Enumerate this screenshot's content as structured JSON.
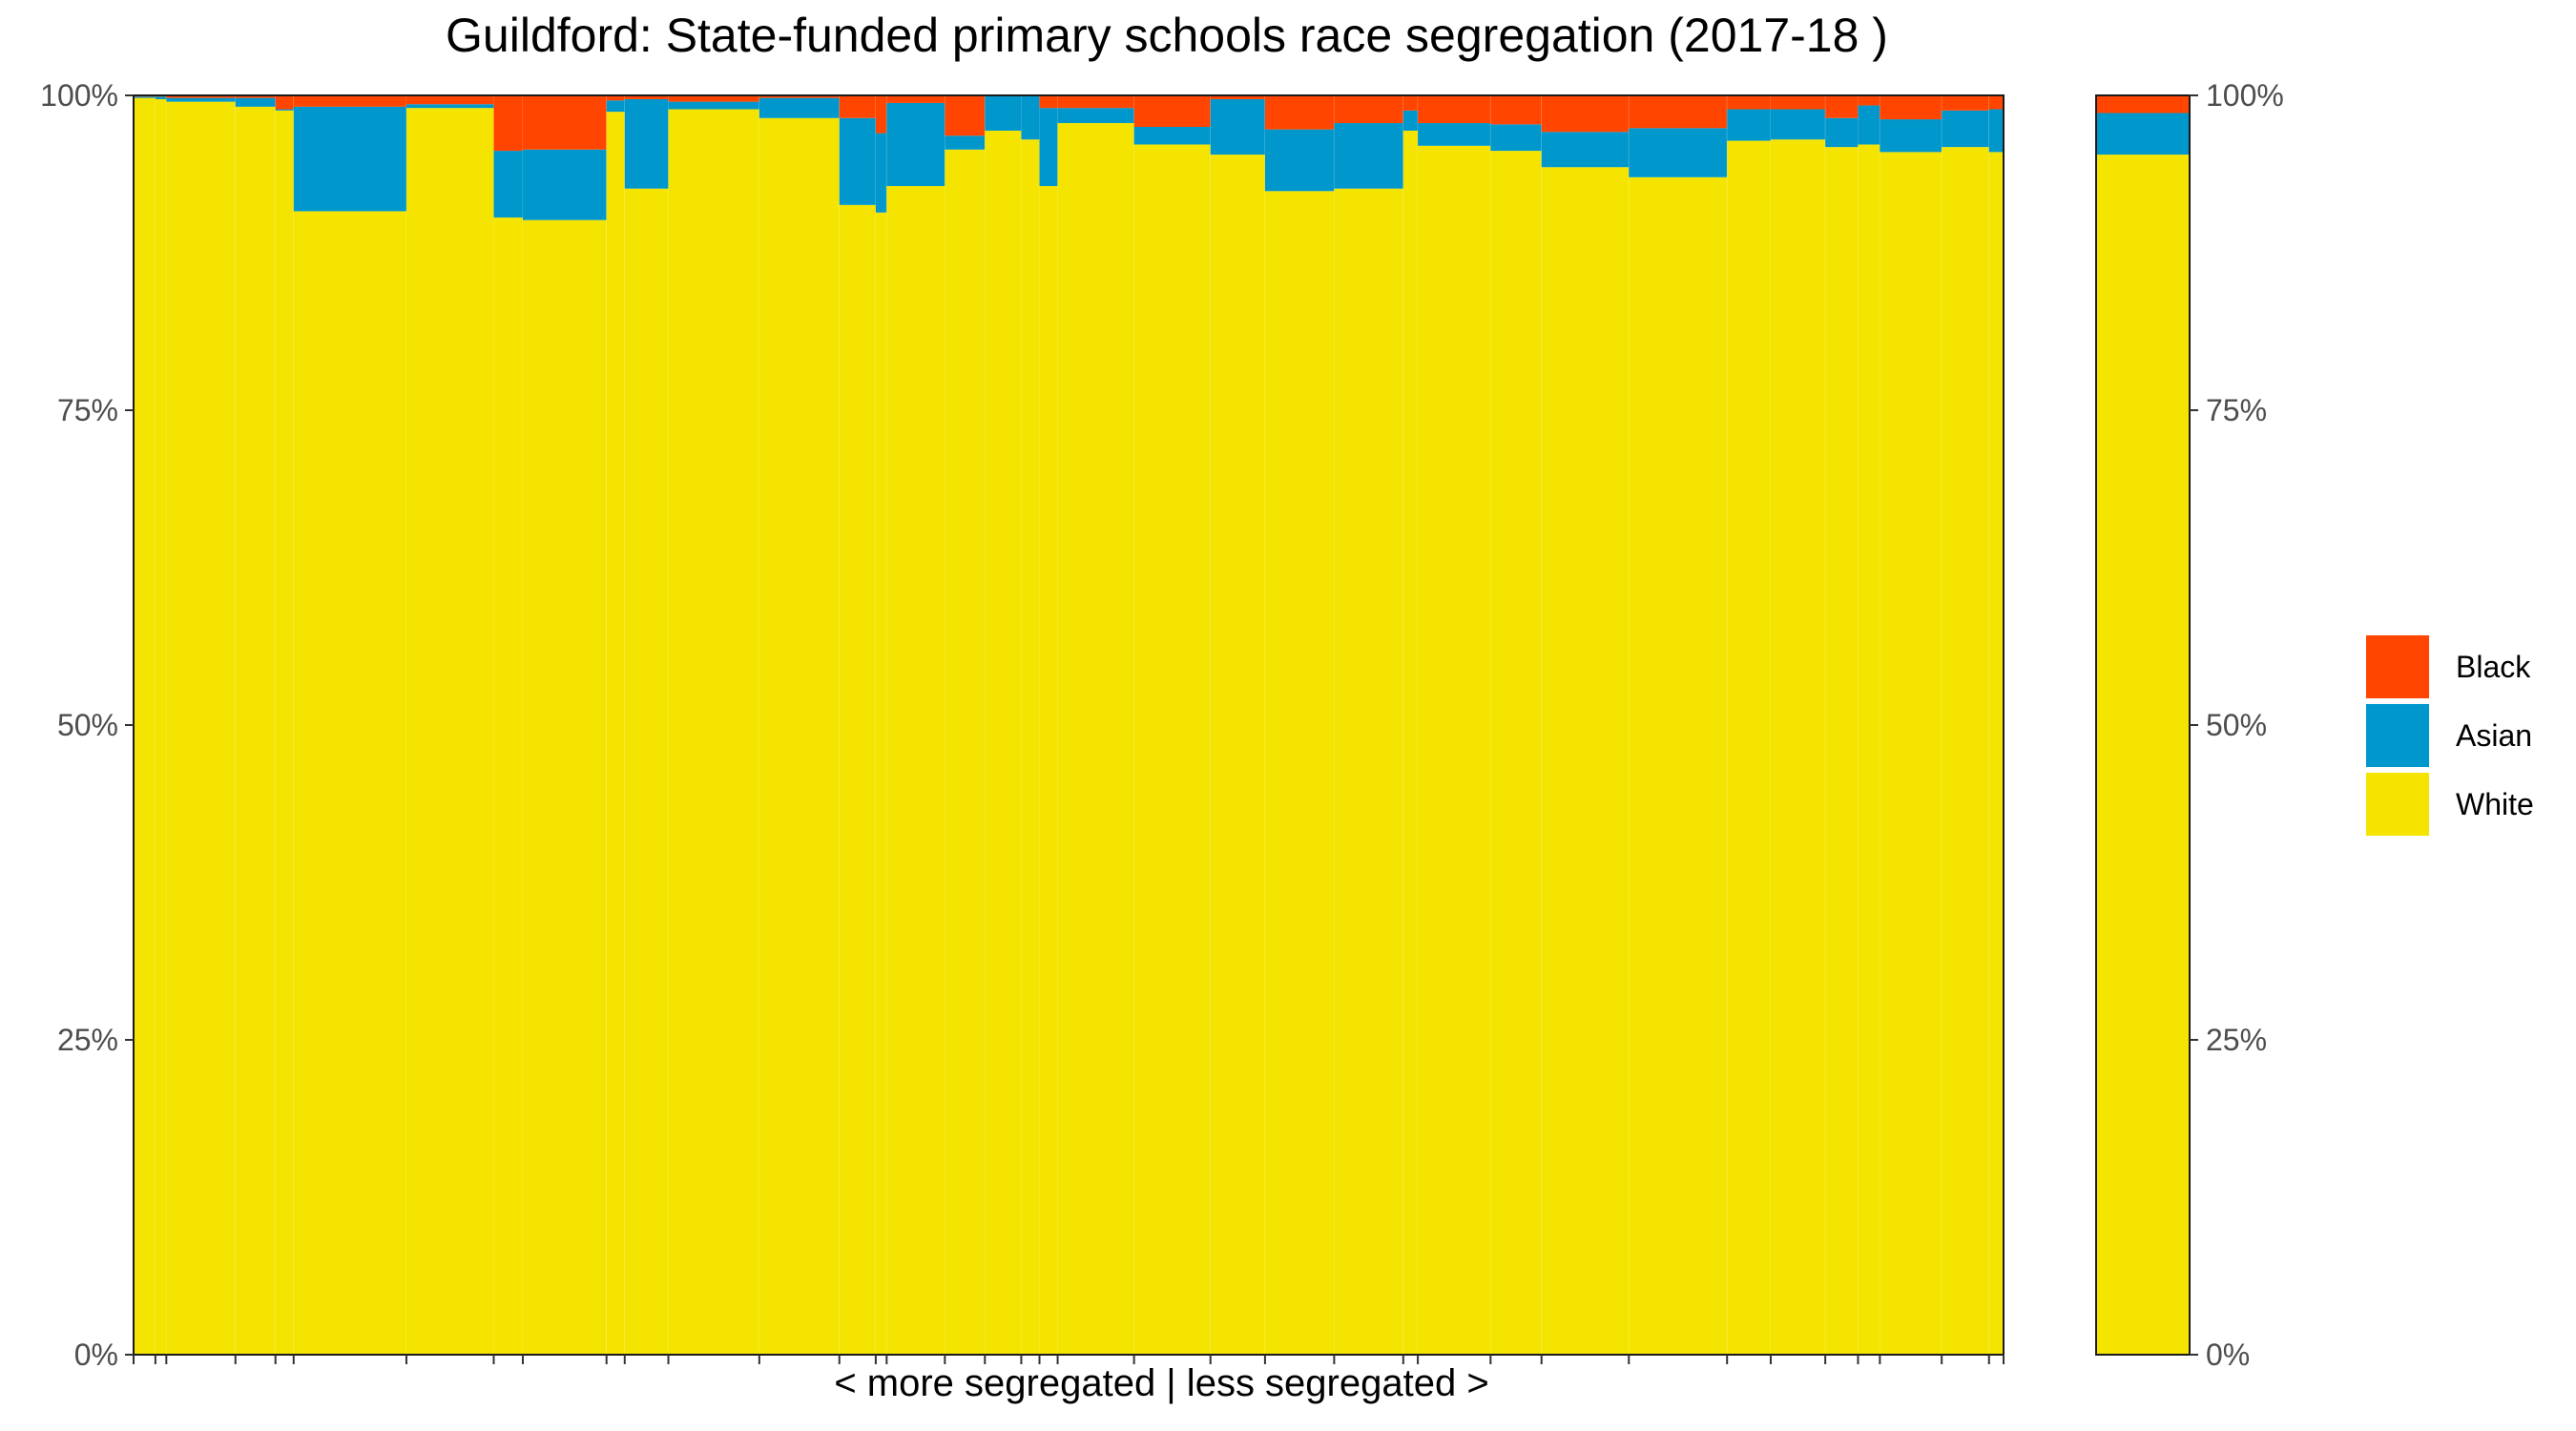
{
  "chart_data": {
    "type": "bar",
    "subtype": "stacked-variable-width (marimekko)",
    "title": "Guildford: State-funded primary schools race segregation (2017-18 )",
    "xlabel": "< more segregated | less segregated >",
    "ylabel": "",
    "ylim": [
      0,
      100
    ],
    "y_ticks": [
      "0%",
      "25%",
      "50%",
      "75%",
      "100%"
    ],
    "grid": false,
    "legend_position": "right",
    "series": [
      {
        "name": "Black",
        "color": "#FF4500"
      },
      {
        "name": "Asian",
        "color": "#0097CC"
      },
      {
        "name": "White",
        "color": "#F5E400"
      }
    ],
    "x_range": [
      0,
      51.4
    ],
    "schools": [
      {
        "start": 0.0,
        "width": 0.6,
        "white": 99.8,
        "asian": 0.1,
        "black": 0.1
      },
      {
        "start": 0.6,
        "width": 0.3,
        "white": 99.7,
        "asian": 0.2,
        "black": 0.1
      },
      {
        "start": 0.9,
        "width": 1.9,
        "white": 99.5,
        "asian": 0.3,
        "black": 0.2
      },
      {
        "start": 2.8,
        "width": 1.1,
        "white": 99.1,
        "asian": 0.7,
        "black": 0.2
      },
      {
        "start": 3.9,
        "width": 0.5,
        "white": 98.8,
        "asian": 0.1,
        "black": 1.1
      },
      {
        "start": 4.4,
        "width": 3.1,
        "white": 90.8,
        "asian": 8.3,
        "black": 0.9
      },
      {
        "start": 7.5,
        "width": 2.4,
        "white": 99.0,
        "asian": 0.3,
        "black": 0.7
      },
      {
        "start": 9.9,
        "width": 0.8,
        "white": 90.3,
        "asian": 5.3,
        "black": 4.4
      },
      {
        "start": 10.7,
        "width": 2.3,
        "white": 90.1,
        "asian": 5.6,
        "black": 4.3
      },
      {
        "start": 13.0,
        "width": 0.5,
        "white": 98.7,
        "asian": 0.9,
        "black": 0.4
      },
      {
        "start": 13.5,
        "width": 1.2,
        "white": 92.6,
        "asian": 7.1,
        "black": 0.3
      },
      {
        "start": 14.7,
        "width": 2.5,
        "white": 98.9,
        "asian": 0.6,
        "black": 0.5
      },
      {
        "start": 17.2,
        "width": 2.2,
        "white": 98.2,
        "asian": 1.6,
        "black": 0.2
      },
      {
        "start": 19.4,
        "width": 1.0,
        "white": 91.3,
        "asian": 6.9,
        "black": 1.8
      },
      {
        "start": 20.4,
        "width": 0.3,
        "white": 90.7,
        "asian": 6.3,
        "black": 3.0
      },
      {
        "start": 20.7,
        "width": 1.6,
        "white": 92.8,
        "asian": 6.6,
        "black": 0.6
      },
      {
        "start": 22.3,
        "width": 1.1,
        "white": 95.7,
        "asian": 1.1,
        "black": 3.2
      },
      {
        "start": 23.4,
        "width": 1.0,
        "white": 97.2,
        "asian": 2.8,
        "black": 0.0
      },
      {
        "start": 24.4,
        "width": 0.5,
        "white": 96.5,
        "asian": 3.5,
        "black": 0.0
      },
      {
        "start": 24.9,
        "width": 0.5,
        "white": 92.8,
        "asian": 6.2,
        "black": 1.0
      },
      {
        "start": 25.4,
        "width": 2.1,
        "white": 97.8,
        "asian": 1.2,
        "black": 1.0
      },
      {
        "start": 27.5,
        "width": 2.1,
        "white": 96.1,
        "asian": 1.4,
        "black": 2.5
      },
      {
        "start": 29.6,
        "width": 1.5,
        "white": 95.3,
        "asian": 4.4,
        "black": 0.3
      },
      {
        "start": 31.1,
        "width": 1.9,
        "white": 92.4,
        "asian": 4.9,
        "black": 2.7
      },
      {
        "start": 33.0,
        "width": 1.9,
        "white": 92.6,
        "asian": 5.2,
        "black": 2.2
      },
      {
        "start": 34.9,
        "width": 0.4,
        "white": 97.2,
        "asian": 1.6,
        "black": 1.2
      },
      {
        "start": 35.3,
        "width": 2.0,
        "white": 96.0,
        "asian": 1.8,
        "black": 2.2
      },
      {
        "start": 37.3,
        "width": 1.4,
        "white": 95.6,
        "asian": 2.1,
        "black": 2.3
      },
      {
        "start": 38.7,
        "width": 2.4,
        "white": 94.3,
        "asian": 2.8,
        "black": 2.9
      },
      {
        "start": 41.1,
        "width": 2.7,
        "white": 93.5,
        "asian": 3.9,
        "black": 2.6
      },
      {
        "start": 43.8,
        "width": 1.2,
        "white": 96.4,
        "asian": 2.5,
        "black": 1.1
      },
      {
        "start": 45.0,
        "width": 1.5,
        "white": 96.5,
        "asian": 2.4,
        "black": 1.1
      },
      {
        "start": 46.5,
        "width": 0.9,
        "white": 95.9,
        "asian": 2.3,
        "black": 1.8
      },
      {
        "start": 47.4,
        "width": 0.6,
        "white": 96.1,
        "asian": 3.1,
        "black": 0.8
      },
      {
        "start": 48.0,
        "width": 1.7,
        "white": 95.5,
        "asian": 2.6,
        "black": 1.9
      },
      {
        "start": 49.7,
        "width": 1.3,
        "white": 95.9,
        "asian": 2.9,
        "black": 1.2
      },
      {
        "start": 51.0,
        "width": 0.4,
        "white": 95.5,
        "asian": 3.4,
        "black": 1.1
      }
    ],
    "overall": {
      "white": 95.3,
      "asian": 3.3,
      "black": 1.4
    }
  }
}
